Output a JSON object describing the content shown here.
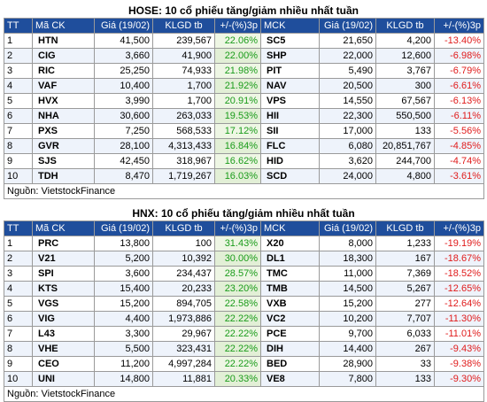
{
  "tables": [
    {
      "title": "HOSE: 10 cổ phiếu tăng/giảm nhiều nhất tuần",
      "headers": [
        "TT",
        "Mã CK",
        "Giá (19/02)",
        "KLGD tb",
        "+/-(%)3p",
        "MCK",
        "Giá (19/02)",
        "KLGD tb",
        "+/-(%)3p"
      ],
      "rows": [
        [
          "1",
          "HTN",
          "41,500",
          "239,567",
          "22.06%",
          "SC5",
          "21,650",
          "4,200",
          "-13.40%"
        ],
        [
          "2",
          "CIG",
          "3,660",
          "41,900",
          "22.00%",
          "SHP",
          "22,000",
          "12,600",
          "-6.98%"
        ],
        [
          "3",
          "RIC",
          "25,250",
          "74,933",
          "21.98%",
          "PIT",
          "5,490",
          "3,767",
          "-6.79%"
        ],
        [
          "4",
          "VAF",
          "10,400",
          "1,700",
          "21.92%",
          "NAV",
          "20,500",
          "300",
          "-6.61%"
        ],
        [
          "5",
          "HVX",
          "3,990",
          "1,700",
          "20.91%",
          "VPS",
          "14,550",
          "67,567",
          "-6.13%"
        ],
        [
          "6",
          "NHA",
          "30,600",
          "263,033",
          "19.53%",
          "HII",
          "22,300",
          "550,500",
          "-6.11%"
        ],
        [
          "7",
          "PXS",
          "7,250",
          "568,533",
          "17.12%",
          "SII",
          "17,000",
          "133",
          "-5.56%"
        ],
        [
          "8",
          "GVR",
          "28,100",
          "4,313,433",
          "16.84%",
          "FLC",
          "6,080",
          "20,851,767",
          "-4.85%"
        ],
        [
          "9",
          "SJS",
          "42,450",
          "318,967",
          "16.62%",
          "HID",
          "3,620",
          "244,700",
          "-4.74%"
        ],
        [
          "10",
          "TDH",
          "8,470",
          "1,719,267",
          "16.03%",
          "SCD",
          "24,000",
          "4,800",
          "-3.61%"
        ]
      ],
      "source": "Nguồn: VietstockFinance"
    },
    {
      "title": "HNX: 10 cổ phiếu tăng/giảm nhiều nhất tuần",
      "headers": [
        "TT",
        "Mã CK",
        "Giá (19/02)",
        "KLGD tb",
        "+/-(%)3p",
        "MCK",
        "Giá (19/02)",
        "KLGD tb",
        "+/-(%)3p"
      ],
      "rows": [
        [
          "1",
          "PRC",
          "13,800",
          "100",
          "31.43%",
          "X20",
          "8,000",
          "1,233",
          "-19.19%"
        ],
        [
          "2",
          "V21",
          "5,200",
          "10,392",
          "30.00%",
          "DL1",
          "18,300",
          "167",
          "-18.67%"
        ],
        [
          "3",
          "SPI",
          "3,600",
          "234,437",
          "28.57%",
          "TMC",
          "11,000",
          "7,369",
          "-18.52%"
        ],
        [
          "4",
          "KTS",
          "15,400",
          "20,233",
          "23.20%",
          "TMB",
          "14,500",
          "5,267",
          "-12.65%"
        ],
        [
          "5",
          "VGS",
          "15,200",
          "894,705",
          "22.58%",
          "VXB",
          "15,200",
          "277",
          "-12.64%"
        ],
        [
          "6",
          "VIG",
          "4,400",
          "1,973,886",
          "22.22%",
          "VC2",
          "10,200",
          "7,707",
          "-11.30%"
        ],
        [
          "7",
          "L43",
          "3,300",
          "29,967",
          "22.22%",
          "PCE",
          "9,700",
          "6,033",
          "-11.01%"
        ],
        [
          "8",
          "VHE",
          "5,500",
          "323,431",
          "22.22%",
          "DIH",
          "14,400",
          "267",
          "-9.43%"
        ],
        [
          "9",
          "CEO",
          "11,200",
          "4,997,284",
          "22.22%",
          "BED",
          "28,900",
          "33",
          "-9.38%"
        ],
        [
          "10",
          "UNI",
          "14,800",
          "11,881",
          "20.33%",
          "VE8",
          "7,800",
          "133",
          "-9.30%"
        ]
      ],
      "source": "Nguồn: VietstockFinance"
    }
  ],
  "colors": {
    "header_bg": "#1f4e9c",
    "up": "#1a9c1a",
    "down": "#e01b1b"
  }
}
